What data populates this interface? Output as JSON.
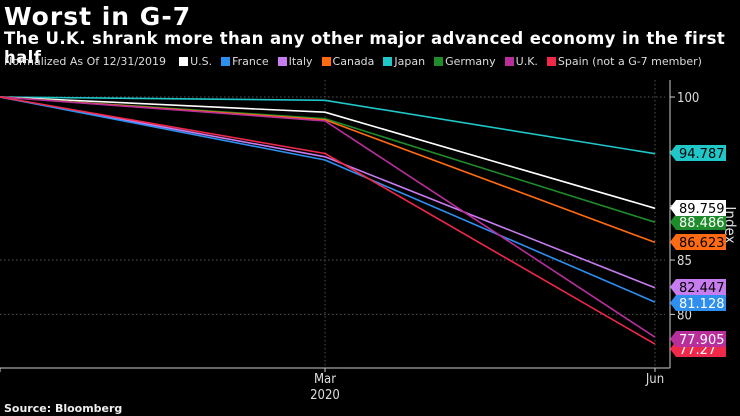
{
  "header": {
    "title": "Worst in G-7",
    "subtitle": "The U.K. shrank more than any other major advanced economy in the first half"
  },
  "legend": {
    "prefix": "Normalized As Of 12/31/2019",
    "items": [
      {
        "label": "U.S.",
        "color": "#ffffff"
      },
      {
        "label": "France",
        "color": "#2e8fef"
      },
      {
        "label": "Italy",
        "color": "#c77cf0"
      },
      {
        "label": "Canada",
        "color": "#ff6a13"
      },
      {
        "label": "Japan",
        "color": "#1fc7c9"
      },
      {
        "label": "Germany",
        "color": "#1e8c2a"
      },
      {
        "label": "U.K.",
        "color": "#b82f9b"
      },
      {
        "label": "Spain (not a G-7 member)",
        "color": "#f0284a"
      }
    ]
  },
  "source": "Source: Bloomberg",
  "chart_data": {
    "type": "line",
    "title": "Worst in G-7",
    "subtitle": "The U.K. shrank more than any other major advanced economy in the first half",
    "xlabel": "",
    "ylabel": "Index",
    "x": [
      "Dec 2019",
      "Mar 2020",
      "Jun 2020"
    ],
    "x_tick_labels": [
      {
        "label": "Mar",
        "sub": "2020",
        "index": 1
      },
      {
        "label": "Jun",
        "sub": "",
        "index": 2
      }
    ],
    "y_ticks": [
      80,
      85,
      100
    ],
    "ylim": [
      76.2,
      100.3
    ],
    "grid": true,
    "legend_position": "top",
    "series": [
      {
        "name": "Japan",
        "color": "#1fc7c9",
        "values": [
          100,
          99.7,
          94.787
        ],
        "end_label": "94.787",
        "label_text_color": "#000000"
      },
      {
        "name": "U.S.",
        "color": "#ffffff",
        "values": [
          100,
          98.6,
          89.759
        ],
        "end_label": "89.759",
        "label_text_color": "#000000"
      },
      {
        "name": "Germany",
        "color": "#1e8c2a",
        "values": [
          100,
          98.0,
          88.486
        ],
        "end_label": "88.486",
        "label_text_color": "#ffffff"
      },
      {
        "name": "Canada",
        "color": "#ff6a13",
        "values": [
          100,
          97.9,
          86.623
        ],
        "end_label": "86.623",
        "label_text_color": "#000000"
      },
      {
        "name": "Italy",
        "color": "#c77cf0",
        "values": [
          100,
          94.5,
          82.447
        ],
        "end_label": "82.447",
        "label_text_color": "#000000"
      },
      {
        "name": "France",
        "color": "#2e8fef",
        "values": [
          100,
          94.2,
          81.128
        ],
        "end_label": "81.128",
        "label_text_color": "#ffffff"
      },
      {
        "name": "U.K.",
        "color": "#b82f9b",
        "values": [
          100,
          97.8,
          77.905
        ],
        "end_label": "77.905",
        "label_text_color": "#ffffff"
      },
      {
        "name": "Spain (not a G-7 member)",
        "color": "#f0284a",
        "values": [
          100,
          94.8,
          77.27
        ],
        "end_label": "77.27",
        "label_text_color": "#ffffff"
      }
    ]
  }
}
